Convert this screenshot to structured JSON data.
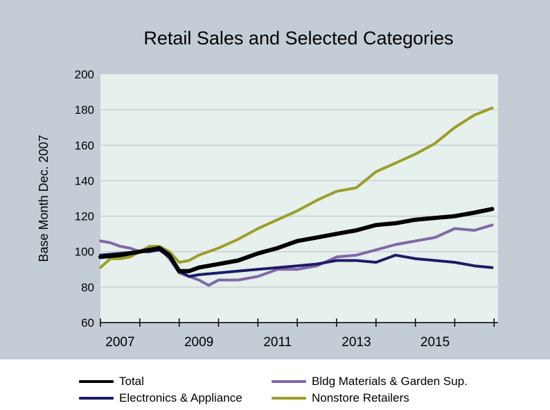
{
  "colors": {
    "background": "#c4ccd6",
    "plot_background": "#e6f0ec",
    "grid": "#b9c0c8"
  },
  "chart_data": {
    "type": "line",
    "title": "Retail Sales and Selected Categories",
    "ylabel": "Base Month Dec. 2007",
    "xlabel": "",
    "ylim": [
      60,
      200
    ],
    "y_ticks": [
      60,
      80,
      100,
      120,
      140,
      160,
      180,
      200
    ],
    "xlim": [
      2007,
      2017.1
    ],
    "x_ticks": [
      "2007",
      "2009",
      "2011",
      "2013",
      "2015"
    ],
    "grid": true,
    "legend_position": "bottom",
    "series": [
      {
        "name": "Total",
        "color": "#000000",
        "points": [
          [
            2007.0,
            97
          ],
          [
            2007.5,
            98
          ],
          [
            2008.0,
            100
          ],
          [
            2008.5,
            102
          ],
          [
            2008.75,
            98
          ],
          [
            2009.0,
            89
          ],
          [
            2009.25,
            89
          ],
          [
            2009.5,
            91
          ],
          [
            2010.0,
            93
          ],
          [
            2010.5,
            95
          ],
          [
            2011.0,
            99
          ],
          [
            2011.5,
            102
          ],
          [
            2012.0,
            106
          ],
          [
            2012.5,
            108
          ],
          [
            2013.0,
            110
          ],
          [
            2013.5,
            112
          ],
          [
            2014.0,
            115
          ],
          [
            2014.5,
            116
          ],
          [
            2015.0,
            118
          ],
          [
            2015.5,
            119
          ],
          [
            2016.0,
            120
          ],
          [
            2016.5,
            122
          ],
          [
            2016.95,
            124
          ]
        ]
      },
      {
        "name": "Bldg Materials & Garden Sup.",
        "color": "#8068a6",
        "points": [
          [
            2007.0,
            106
          ],
          [
            2007.25,
            105
          ],
          [
            2007.5,
            103
          ],
          [
            2007.75,
            102
          ],
          [
            2008.0,
            100
          ],
          [
            2008.5,
            102
          ],
          [
            2008.75,
            96
          ],
          [
            2009.0,
            88
          ],
          [
            2009.5,
            84
          ],
          [
            2009.75,
            81
          ],
          [
            2010.0,
            84
          ],
          [
            2010.5,
            84
          ],
          [
            2011.0,
            86
          ],
          [
            2011.5,
            90
          ],
          [
            2012.0,
            90
          ],
          [
            2012.5,
            92
          ],
          [
            2013.0,
            97
          ],
          [
            2013.5,
            98
          ],
          [
            2014.0,
            101
          ],
          [
            2014.5,
            104
          ],
          [
            2015.0,
            106
          ],
          [
            2015.5,
            108
          ],
          [
            2016.0,
            113
          ],
          [
            2016.5,
            112
          ],
          [
            2016.95,
            115
          ]
        ]
      },
      {
        "name": "Electronics & Appliance",
        "color": "#1c1c68",
        "points": [
          [
            2007.0,
            98
          ],
          [
            2007.5,
            99
          ],
          [
            2008.0,
            100
          ],
          [
            2008.25,
            100
          ],
          [
            2008.5,
            101
          ],
          [
            2008.75,
            97
          ],
          [
            2009.0,
            89
          ],
          [
            2009.25,
            86
          ],
          [
            2009.5,
            87
          ],
          [
            2010.0,
            88
          ],
          [
            2010.5,
            89
          ],
          [
            2011.0,
            90
          ],
          [
            2011.5,
            91
          ],
          [
            2012.0,
            92
          ],
          [
            2012.5,
            93
          ],
          [
            2013.0,
            95
          ],
          [
            2013.5,
            95
          ],
          [
            2014.0,
            94
          ],
          [
            2014.5,
            98
          ],
          [
            2015.0,
            96
          ],
          [
            2015.5,
            95
          ],
          [
            2016.0,
            94
          ],
          [
            2016.5,
            92
          ],
          [
            2016.95,
            91
          ]
        ]
      },
      {
        "name": "Nonstore Retailers",
        "color": "#9c9e28",
        "points": [
          [
            2007.0,
            91
          ],
          [
            2007.25,
            96
          ],
          [
            2007.5,
            96
          ],
          [
            2007.75,
            97
          ],
          [
            2008.0,
            100
          ],
          [
            2008.25,
            103
          ],
          [
            2008.5,
            103
          ],
          [
            2008.75,
            100
          ],
          [
            2009.0,
            94
          ],
          [
            2009.25,
            95
          ],
          [
            2009.5,
            98
          ],
          [
            2010.0,
            102
          ],
          [
            2010.5,
            107
          ],
          [
            2011.0,
            113
          ],
          [
            2011.5,
            118
          ],
          [
            2012.0,
            123
          ],
          [
            2012.5,
            129
          ],
          [
            2013.0,
            134
          ],
          [
            2013.5,
            136
          ],
          [
            2014.0,
            145
          ],
          [
            2014.5,
            150
          ],
          [
            2015.0,
            155
          ],
          [
            2015.5,
            161
          ],
          [
            2016.0,
            170
          ],
          [
            2016.5,
            177
          ],
          [
            2016.95,
            181
          ]
        ]
      }
    ]
  },
  "legend": {
    "items": [
      {
        "label": "Total",
        "color": "#000000"
      },
      {
        "label": "Electronics & Appliance",
        "color": "#1c1c68"
      },
      {
        "label": "Bldg Materials & Garden Sup.",
        "color": "#8068a6"
      },
      {
        "label": "Nonstore Retailers",
        "color": "#9c9e28"
      }
    ]
  }
}
